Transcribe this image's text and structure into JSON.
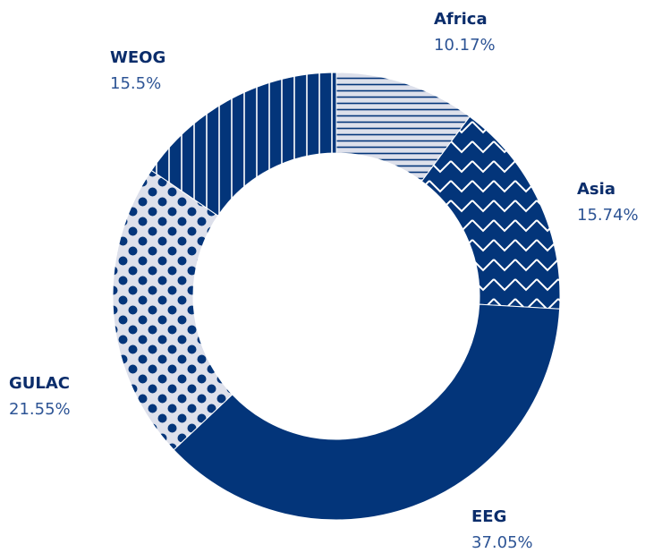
{
  "chart_data": {
    "type": "donut",
    "categories": [
      "Africa",
      "Asia",
      "EEG",
      "GULAC",
      "WEOG"
    ],
    "values": [
      10.17,
      15.74,
      37.05,
      21.55,
      15.5
    ],
    "value_labels": [
      "10.17%",
      "15.74%",
      "37.05%",
      "21.55%",
      "15.5%"
    ],
    "colors": [
      "#dde0eb",
      "#03357a",
      "#03357a",
      "#dde0eb",
      "#03357a"
    ]
  }
}
